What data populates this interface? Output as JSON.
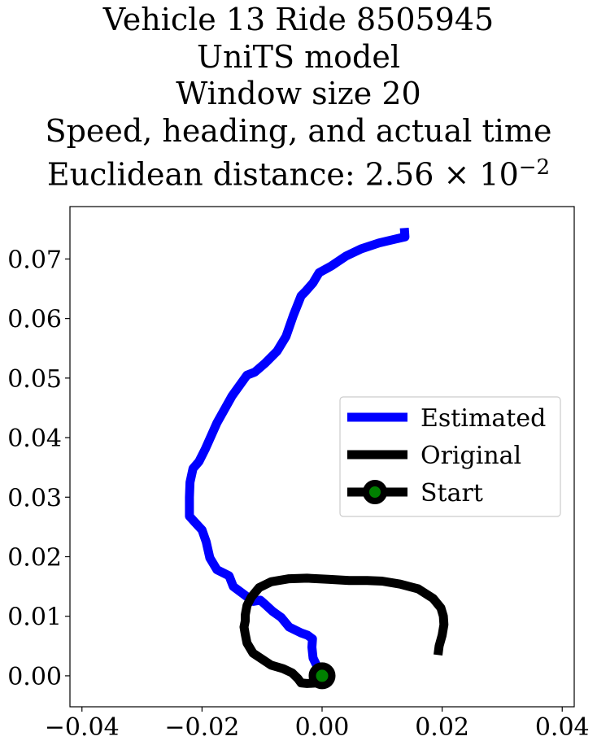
{
  "chart_data": {
    "type": "line",
    "title_lines": [
      "Vehicle 13 Ride 8505945",
      "UniTS model",
      "Window size 20",
      "Speed, heading, and actual time"
    ],
    "distance_label": "Euclidean distance: ",
    "distance_mantissa": "2.56",
    "distance_exponent": "−2",
    "xlim": [
      -0.042,
      0.042
    ],
    "ylim": [
      -0.0052,
      0.0788
    ],
    "xticks": [
      "−0.04",
      "−0.02",
      "0.00",
      "0.02",
      "0.04"
    ],
    "xtick_values": [
      -0.04,
      -0.02,
      0.0,
      0.02,
      0.04
    ],
    "yticks": [
      "0.00",
      "0.01",
      "0.02",
      "0.03",
      "0.04",
      "0.05",
      "0.06",
      "0.07"
    ],
    "ytick_values": [
      0.0,
      0.01,
      0.02,
      0.03,
      0.04,
      0.05,
      0.06,
      0.07
    ],
    "grid": false,
    "legend_position": "center-right",
    "series": [
      {
        "name": "Estimated",
        "color": "#0000ff",
        "x": [
          0.0,
          -0.0008,
          -0.0015,
          -0.0017,
          -0.0016,
          -0.0024,
          -0.0035,
          -0.0055,
          -0.0068,
          -0.0082,
          -0.0095,
          -0.0103,
          -0.0115,
          -0.0132,
          -0.0148,
          -0.0155,
          -0.0175,
          -0.0187,
          -0.0193,
          -0.02,
          -0.0212,
          -0.0221,
          -0.0221,
          -0.022,
          -0.0215,
          -0.0205,
          -0.0195,
          -0.0175,
          -0.015,
          -0.0125,
          -0.0112,
          -0.0095,
          -0.0075,
          -0.006,
          -0.0048,
          -0.0035,
          -0.0028,
          -0.0015,
          -0.0005,
          0.0015,
          0.004,
          0.0065,
          0.0095,
          0.012,
          0.0138,
          0.0137
        ],
        "y": [
          0.0,
          0.0015,
          0.003,
          0.0048,
          0.0062,
          0.0068,
          0.0072,
          0.0082,
          0.0098,
          0.0108,
          0.012,
          0.0127,
          0.0125,
          0.0138,
          0.015,
          0.0168,
          0.0178,
          0.0198,
          0.0225,
          0.0245,
          0.0258,
          0.0268,
          0.03,
          0.0325,
          0.0348,
          0.036,
          0.038,
          0.0425,
          0.047,
          0.0505,
          0.051,
          0.0525,
          0.0545,
          0.057,
          0.0605,
          0.0638,
          0.0645,
          0.066,
          0.0677,
          0.0688,
          0.0705,
          0.0717,
          0.0727,
          0.0733,
          0.0737,
          0.0752
        ]
      },
      {
        "name": "Original",
        "color": "#000000",
        "x": [
          0.0,
          -0.001,
          -0.0025,
          -0.0035,
          -0.004,
          -0.005,
          -0.0065,
          -0.0085,
          -0.0115,
          -0.0125,
          -0.0128,
          -0.013,
          -0.0128,
          -0.0128,
          -0.0125,
          -0.0118,
          -0.0105,
          -0.0085,
          -0.0055,
          -0.0025,
          0.001,
          0.0045,
          0.0075,
          0.01,
          0.013,
          0.016,
          0.0185,
          0.0198,
          0.0202,
          0.0203,
          0.02,
          0.0195,
          0.0193
        ],
        "y": [
          0.0,
          -0.0012,
          -0.0013,
          -0.0012,
          -0.0005,
          0.0005,
          0.0012,
          0.0018,
          0.0038,
          0.0055,
          0.007,
          0.0082,
          0.0092,
          0.0102,
          0.0118,
          0.0132,
          0.0148,
          0.0158,
          0.0163,
          0.0164,
          0.0162,
          0.016,
          0.016,
          0.0159,
          0.0154,
          0.0146,
          0.013,
          0.0114,
          0.01,
          0.0086,
          0.0068,
          0.005,
          0.0035
        ]
      }
    ],
    "start_point": {
      "name": "Start",
      "x": 0.0,
      "y": 0.0,
      "edge_color": "#000000",
      "face_color": "#008000"
    }
  }
}
